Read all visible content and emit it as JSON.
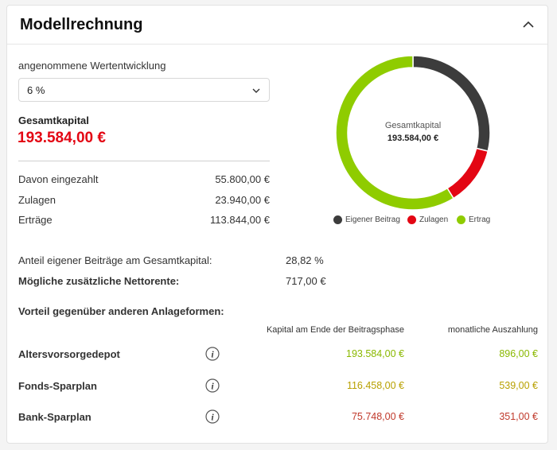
{
  "header": {
    "title": "Modellrechnung"
  },
  "growth": {
    "label": "angenommene Wertentwicklung",
    "selected": "6 %"
  },
  "total": {
    "label": "Gesamtkapital",
    "value": "193.584,00 €"
  },
  "breakdown": [
    {
      "label": "Davon eingezahlt",
      "value": "55.800,00 €"
    },
    {
      "label": "Zulagen",
      "value": "23.940,00 €"
    },
    {
      "label": "Erträge",
      "value": "113.844,00 €"
    }
  ],
  "donut": {
    "center_label": "Gesamtkapital",
    "center_value": "193.584,00 €",
    "segments": [
      {
        "name": "Eigener Beitrag",
        "value": 55800,
        "color": "#3c3c3c"
      },
      {
        "name": "Zulagen",
        "value": 23940,
        "color": "#e30613"
      },
      {
        "name": "Ertrag",
        "value": 113844,
        "color": "#8fcc00"
      }
    ]
  },
  "share": {
    "label": "Anteil eigener Beiträge am Gesamtkapital:",
    "value": "28,82 %"
  },
  "pension": {
    "label": "Mögliche zusätzliche Nettorente:",
    "value": "717,00 €"
  },
  "comparison": {
    "title": "Vorteil gegenüber anderen Anlageformen:",
    "col_capital": "Kapital am Ende der Beitragsphase",
    "col_monthly": "monatliche Auszahlung",
    "rows": [
      {
        "name": "Altersvorsorgedepot",
        "capital": "193.584,00 €",
        "monthly": "896,00 €",
        "color": "#8ab800"
      },
      {
        "name": "Fonds-Sparplan",
        "capital": "116.458,00 €",
        "monthly": "539,00 €",
        "color": "#b8a000"
      },
      {
        "name": "Bank-Sparplan",
        "capital": "75.748,00 €",
        "monthly": "351,00 €",
        "color": "#c0392b"
      }
    ]
  }
}
